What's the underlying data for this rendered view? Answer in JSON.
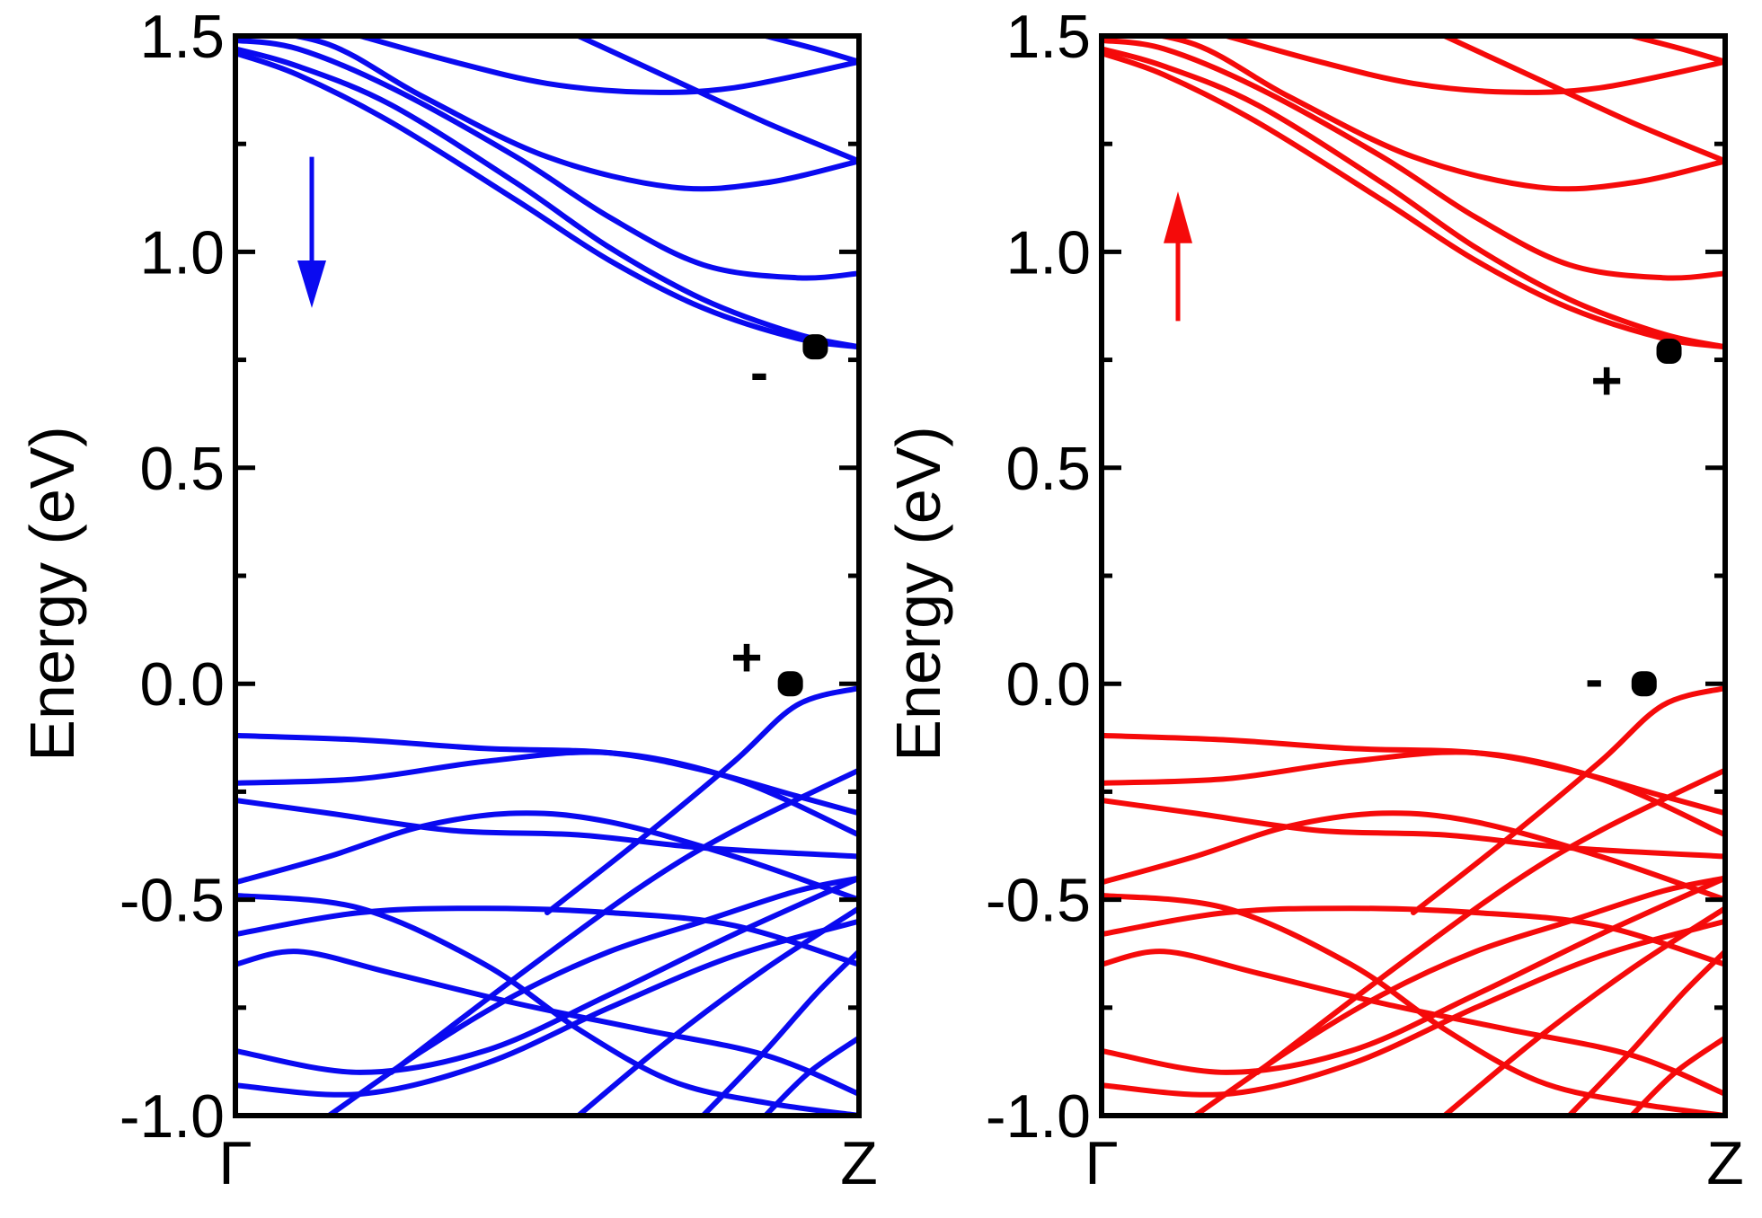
{
  "chart_data": [
    {
      "type": "line",
      "panel": "left",
      "ylabel": "Energy (eV)",
      "xlabel": "",
      "ylim": [
        -1.0,
        1.5
      ],
      "y_ticks": [
        "1.5",
        "1.0",
        "0.5",
        "0.0",
        "-0.5",
        "-1.0"
      ],
      "y_tick_values": [
        1.5,
        1.0,
        0.5,
        0.0,
        -0.5,
        -1.0
      ],
      "x_ticks": [
        "Γ",
        "Z"
      ],
      "x_tick_values": [
        0,
        1
      ],
      "color": "#0a0af0",
      "spin_arrow": "down",
      "annotations": [
        {
          "text": "-",
          "x": 0.93,
          "y": 0.78,
          "label_x": 0.84,
          "label_y": 0.72
        },
        {
          "text": "+",
          "x": 0.89,
          "y": 0.0,
          "label_x": 0.82,
          "label_y": 0.06
        }
      ],
      "series": [
        {
          "x": [
            0,
            0.1,
            0.25,
            0.45,
            0.6,
            0.75,
            0.9,
            1.0
          ],
          "values": [
            1.46,
            1.41,
            1.3,
            1.12,
            0.98,
            0.87,
            0.8,
            0.78
          ]
        },
        {
          "x": [
            0,
            0.1,
            0.25,
            0.45,
            0.6,
            0.75,
            0.9,
            1.0
          ],
          "values": [
            1.47,
            1.43,
            1.34,
            1.16,
            1.01,
            0.89,
            0.81,
            0.78
          ]
        },
        {
          "x": [
            0,
            0.1,
            0.25,
            0.45,
            0.6,
            0.75,
            0.9,
            1.0
          ],
          "values": [
            1.49,
            1.47,
            1.38,
            1.22,
            1.08,
            0.97,
            0.94,
            0.95
          ]
        },
        {
          "x": [
            0,
            0.15,
            0.3,
            0.5,
            0.7,
            0.85,
            1.0
          ],
          "values": [
            1.52,
            1.48,
            1.36,
            1.22,
            1.15,
            1.16,
            1.21
          ]
        },
        {
          "x": [
            0.2,
            0.35,
            0.5,
            0.65,
            0.8,
            1.0
          ],
          "values": [
            1.5,
            1.44,
            1.39,
            1.37,
            1.38,
            1.44
          ]
        },
        {
          "x": [
            0.55,
            0.7,
            0.85,
            1.0
          ],
          "values": [
            1.5,
            1.4,
            1.3,
            1.21
          ]
        },
        {
          "x": [
            0.85,
            0.93,
            1.0
          ],
          "values": [
            1.5,
            1.47,
            1.44
          ]
        },
        {
          "x": [
            0,
            0.2,
            0.4,
            0.6,
            0.75,
            0.9,
            1.0
          ],
          "values": [
            -0.12,
            -0.13,
            -0.15,
            -0.16,
            -0.2,
            -0.26,
            -0.3
          ]
        },
        {
          "x": [
            0,
            0.2,
            0.4,
            0.6,
            0.8,
            1.0
          ],
          "values": [
            -0.23,
            -0.22,
            -0.18,
            -0.16,
            -0.22,
            -0.35
          ]
        },
        {
          "x": [
            0,
            0.15,
            0.35,
            0.55,
            0.75,
            1.0
          ],
          "values": [
            -0.27,
            -0.3,
            -0.34,
            -0.35,
            -0.38,
            -0.4
          ]
        },
        {
          "x": [
            0,
            0.15,
            0.3,
            0.45,
            0.6,
            0.8,
            1.0
          ],
          "values": [
            -0.46,
            -0.4,
            -0.33,
            -0.3,
            -0.32,
            -0.4,
            -0.5
          ]
        },
        {
          "x": [
            0,
            0.2,
            0.4,
            0.6,
            0.8,
            1.0
          ],
          "values": [
            -0.58,
            -0.53,
            -0.52,
            -0.53,
            -0.56,
            -0.65
          ]
        },
        {
          "x": [
            0.5,
            0.65,
            0.8,
            0.9,
            1.0
          ],
          "values": [
            -0.53,
            -0.36,
            -0.18,
            -0.05,
            -0.01
          ]
        },
        {
          "x": [
            0.25,
            0.45,
            0.65,
            0.8,
            1.0
          ],
          "values": [
            -0.9,
            -0.68,
            -0.47,
            -0.34,
            -0.2
          ]
        },
        {
          "x": [
            0,
            0.1,
            0.25,
            0.45,
            0.65,
            0.85,
            1.0
          ],
          "values": [
            -0.65,
            -0.62,
            -0.67,
            -0.74,
            -0.8,
            -0.86,
            -0.95
          ]
        },
        {
          "x": [
            0,
            0.2,
            0.4,
            0.6,
            0.8,
            1.0
          ],
          "values": [
            -0.85,
            -0.9,
            -0.85,
            -0.72,
            -0.58,
            -0.45
          ]
        },
        {
          "x": [
            0,
            0.2,
            0.4,
            0.6,
            0.8,
            1.0
          ],
          "values": [
            -0.93,
            -0.95,
            -0.88,
            -0.75,
            -0.63,
            -0.55
          ]
        },
        {
          "x": [
            0,
            0.2,
            0.4,
            0.55,
            0.7,
            0.85,
            1.0
          ],
          "values": [
            -0.49,
            -0.52,
            -0.65,
            -0.8,
            -0.92,
            -0.97,
            -1.0
          ]
        },
        {
          "x": [
            0.15,
            0.3,
            0.45,
            0.6,
            0.75,
            0.9,
            1.0
          ],
          "values": [
            -1.0,
            -0.85,
            -0.72,
            -0.62,
            -0.55,
            -0.48,
            -0.45
          ]
        },
        {
          "x": [
            0.55,
            0.7,
            0.85,
            1.0
          ],
          "values": [
            -1.0,
            -0.82,
            -0.66,
            -0.52
          ]
        },
        {
          "x": [
            0.75,
            0.85,
            0.93,
            1.0
          ],
          "values": [
            -1.0,
            -0.85,
            -0.72,
            -0.62
          ]
        },
        {
          "x": [
            0.85,
            0.92,
            1.0
          ],
          "values": [
            -1.0,
            -0.9,
            -0.82
          ]
        }
      ]
    },
    {
      "type": "line",
      "panel": "right",
      "ylabel": "Energy (eV)",
      "xlabel": "",
      "ylim": [
        -1.0,
        1.5
      ],
      "y_ticks": [
        "1.5",
        "1.0",
        "0.5",
        "0.0",
        "-0.5",
        "-1.0"
      ],
      "y_tick_values": [
        1.5,
        1.0,
        0.5,
        0.0,
        -0.5,
        -1.0
      ],
      "x_ticks": [
        "Γ",
        "Z"
      ],
      "x_tick_values": [
        0,
        1
      ],
      "color": "#f50a0a",
      "spin_arrow": "up",
      "annotations": [
        {
          "text": "+",
          "x": 0.91,
          "y": 0.77,
          "label_x": 0.81,
          "label_y": 0.7
        },
        {
          "text": "-",
          "x": 0.87,
          "y": 0.0,
          "label_x": 0.79,
          "label_y": 0.01
        }
      ],
      "series": [
        {
          "x": [
            0,
            0.1,
            0.25,
            0.45,
            0.6,
            0.75,
            0.9,
            1.0
          ],
          "values": [
            1.46,
            1.41,
            1.3,
            1.12,
            0.98,
            0.87,
            0.8,
            0.78
          ]
        },
        {
          "x": [
            0,
            0.1,
            0.25,
            0.45,
            0.6,
            0.75,
            0.9,
            1.0
          ],
          "values": [
            1.47,
            1.43,
            1.34,
            1.16,
            1.01,
            0.89,
            0.81,
            0.78
          ]
        },
        {
          "x": [
            0,
            0.1,
            0.25,
            0.45,
            0.6,
            0.75,
            0.9,
            1.0
          ],
          "values": [
            1.49,
            1.47,
            1.38,
            1.22,
            1.08,
            0.97,
            0.94,
            0.95
          ]
        },
        {
          "x": [
            0,
            0.15,
            0.3,
            0.5,
            0.7,
            0.85,
            1.0
          ],
          "values": [
            1.52,
            1.48,
            1.36,
            1.22,
            1.15,
            1.16,
            1.21
          ]
        },
        {
          "x": [
            0.2,
            0.35,
            0.5,
            0.65,
            0.8,
            1.0
          ],
          "values": [
            1.5,
            1.44,
            1.39,
            1.37,
            1.38,
            1.44
          ]
        },
        {
          "x": [
            0.55,
            0.7,
            0.85,
            1.0
          ],
          "values": [
            1.5,
            1.4,
            1.3,
            1.21
          ]
        },
        {
          "x": [
            0.85,
            0.93,
            1.0
          ],
          "values": [
            1.5,
            1.47,
            1.44
          ]
        },
        {
          "x": [
            0,
            0.2,
            0.4,
            0.6,
            0.75,
            0.9,
            1.0
          ],
          "values": [
            -0.12,
            -0.13,
            -0.15,
            -0.16,
            -0.2,
            -0.26,
            -0.3
          ]
        },
        {
          "x": [
            0,
            0.2,
            0.4,
            0.6,
            0.8,
            1.0
          ],
          "values": [
            -0.23,
            -0.22,
            -0.18,
            -0.16,
            -0.22,
            -0.35
          ]
        },
        {
          "x": [
            0,
            0.15,
            0.35,
            0.55,
            0.75,
            1.0
          ],
          "values": [
            -0.27,
            -0.3,
            -0.34,
            -0.35,
            -0.38,
            -0.4
          ]
        },
        {
          "x": [
            0,
            0.15,
            0.3,
            0.45,
            0.6,
            0.8,
            1.0
          ],
          "values": [
            -0.46,
            -0.4,
            -0.33,
            -0.3,
            -0.32,
            -0.4,
            -0.5
          ]
        },
        {
          "x": [
            0,
            0.2,
            0.4,
            0.6,
            0.8,
            1.0
          ],
          "values": [
            -0.58,
            -0.53,
            -0.52,
            -0.53,
            -0.56,
            -0.65
          ]
        },
        {
          "x": [
            0.5,
            0.65,
            0.8,
            0.9,
            1.0
          ],
          "values": [
            -0.53,
            -0.36,
            -0.18,
            -0.05,
            -0.01
          ]
        },
        {
          "x": [
            0.25,
            0.45,
            0.65,
            0.8,
            1.0
          ],
          "values": [
            -0.9,
            -0.68,
            -0.47,
            -0.34,
            -0.2
          ]
        },
        {
          "x": [
            0,
            0.1,
            0.25,
            0.45,
            0.65,
            0.85,
            1.0
          ],
          "values": [
            -0.65,
            -0.62,
            -0.67,
            -0.74,
            -0.8,
            -0.86,
            -0.95
          ]
        },
        {
          "x": [
            0,
            0.2,
            0.4,
            0.6,
            0.8,
            1.0
          ],
          "values": [
            -0.85,
            -0.9,
            -0.85,
            -0.72,
            -0.58,
            -0.45
          ]
        },
        {
          "x": [
            0,
            0.2,
            0.4,
            0.6,
            0.8,
            1.0
          ],
          "values": [
            -0.93,
            -0.95,
            -0.88,
            -0.75,
            -0.63,
            -0.55
          ]
        },
        {
          "x": [
            0,
            0.2,
            0.4,
            0.55,
            0.7,
            0.85,
            1.0
          ],
          "values": [
            -0.49,
            -0.52,
            -0.65,
            -0.8,
            -0.92,
            -0.97,
            -1.0
          ]
        },
        {
          "x": [
            0.15,
            0.3,
            0.45,
            0.6,
            0.75,
            0.9,
            1.0
          ],
          "values": [
            -1.0,
            -0.85,
            -0.72,
            -0.62,
            -0.55,
            -0.48,
            -0.45
          ]
        },
        {
          "x": [
            0.55,
            0.7,
            0.85,
            1.0
          ],
          "values": [
            -1.0,
            -0.82,
            -0.66,
            -0.52
          ]
        },
        {
          "x": [
            0.75,
            0.85,
            0.93,
            1.0
          ],
          "values": [
            -1.0,
            -0.85,
            -0.72,
            -0.62
          ]
        },
        {
          "x": [
            0.85,
            0.92,
            1.0
          ],
          "values": [
            -1.0,
            -0.9,
            -0.82
          ]
        }
      ]
    }
  ]
}
